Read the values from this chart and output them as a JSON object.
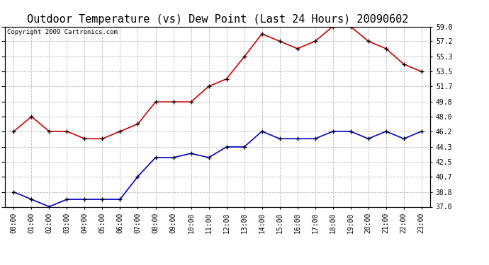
{
  "title": "Outdoor Temperature (vs) Dew Point (Last 24 Hours) 20090602",
  "copyright_text": "Copyright 2009 Cartronics.com",
  "x_labels": [
    "00:00",
    "01:00",
    "02:00",
    "03:00",
    "04:00",
    "05:00",
    "06:00",
    "07:00",
    "08:00",
    "09:00",
    "10:00",
    "11:00",
    "12:00",
    "13:00",
    "14:00",
    "15:00",
    "16:00",
    "17:00",
    "18:00",
    "19:00",
    "20:00",
    "21:00",
    "22:00",
    "23:00"
  ],
  "temp_data": [
    46.2,
    48.0,
    46.2,
    46.2,
    45.3,
    45.3,
    46.2,
    47.1,
    49.8,
    49.8,
    49.8,
    51.7,
    52.6,
    55.3,
    58.1,
    57.2,
    56.3,
    57.2,
    59.0,
    59.0,
    57.2,
    56.3,
    54.4,
    53.5
  ],
  "dew_data": [
    38.8,
    37.9,
    37.0,
    37.9,
    37.9,
    37.9,
    37.9,
    40.7,
    43.0,
    43.0,
    43.5,
    43.0,
    44.3,
    44.3,
    46.2,
    45.3,
    45.3,
    45.3,
    46.2,
    46.2,
    45.3,
    46.2,
    45.3,
    46.2
  ],
  "temp_color": "#cc0000",
  "dew_color": "#0000cc",
  "ylim_min": 37.0,
  "ylim_max": 59.0,
  "yticks": [
    37.0,
    38.8,
    40.7,
    42.5,
    44.3,
    46.2,
    48.0,
    49.8,
    51.7,
    53.5,
    55.3,
    57.2,
    59.0
  ],
  "ytick_labels": [
    "37.0",
    "38.8",
    "40.7",
    "42.5",
    "44.3",
    "46.2",
    "48.0",
    "49.8",
    "51.7",
    "53.5",
    "55.3",
    "57.2",
    "59.0"
  ],
  "grid_color": "#bbbbbb",
  "bg_color": "#ffffff",
  "title_fontsize": 11,
  "tick_fontsize": 7,
  "copyright_fontsize": 6.5,
  "line_width": 1.2,
  "marker": "+",
  "marker_size": 5,
  "marker_color": "#000000",
  "marker_edge_width": 1.0
}
